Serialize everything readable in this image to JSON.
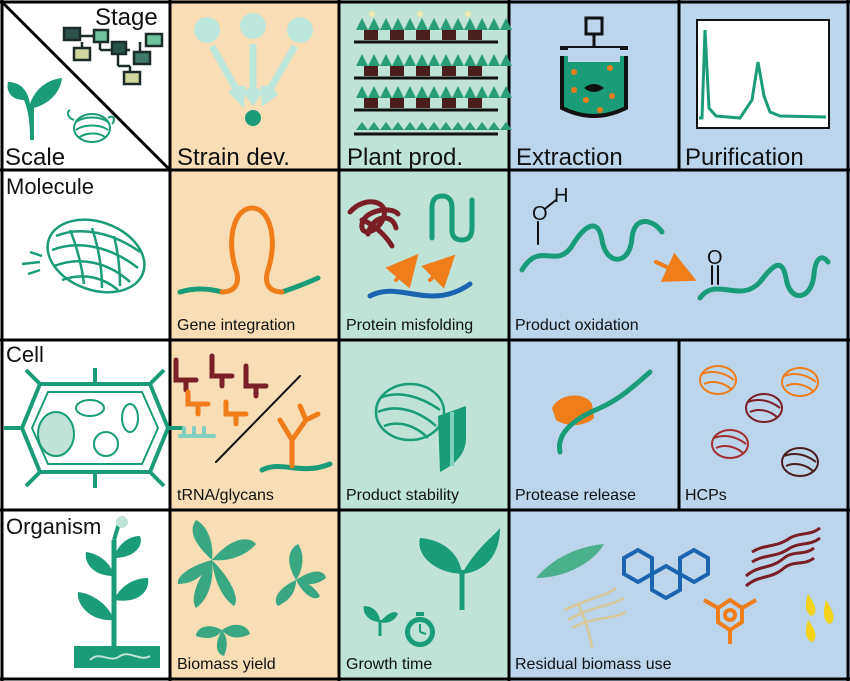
{
  "corner": {
    "stage_label": "Stage",
    "scale_label": "Scale"
  },
  "stages": [
    "Strain dev.",
    "Plant prod.",
    "Extraction",
    "Purification"
  ],
  "scales": [
    "Molecule",
    "Cell",
    "Organism"
  ],
  "cells": {
    "molecule": [
      "Gene integration",
      "Protein misfolding",
      "Product oxidation"
    ],
    "cell": [
      "tRNA/glycans",
      "Product stability",
      "Protease release",
      "HCPs"
    ],
    "organism": [
      "Biomass yield",
      "Growth time",
      "Residual biomass use"
    ]
  },
  "colors": {
    "strain_bg": "#f9ddb5",
    "plant_bg": "#bfe3d6",
    "downstream_bg": "#bcd5ea",
    "green": "#1a9c78",
    "orange": "#ef7d1a",
    "maroon": "#7a1f26",
    "blue": "#1a64b0",
    "gridline": "#000000"
  },
  "icons": {
    "corner": [
      "flowchart-icon",
      "leaf-icon",
      "protein-icon"
    ],
    "strain": [
      "cell-lineage-icon"
    ],
    "plant": [
      "plant-racks-icon"
    ],
    "extraction": [
      "bioreactor-icon"
    ],
    "purification": [
      "chromatogram-icon"
    ]
  }
}
